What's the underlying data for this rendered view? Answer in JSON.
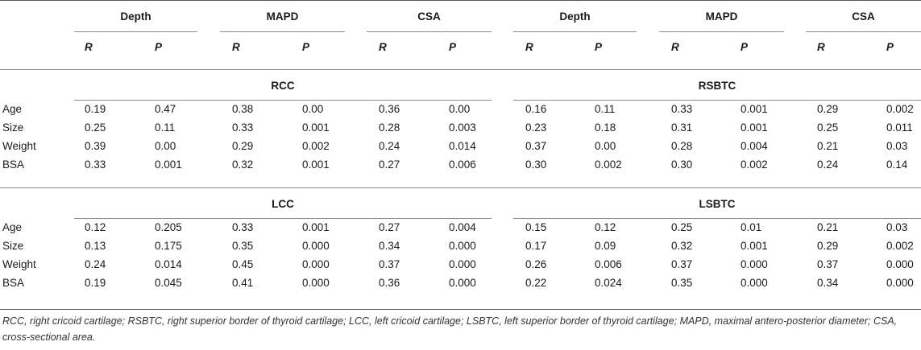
{
  "columns": {
    "left_groups": [
      "Depth",
      "MAPD",
      "CSA"
    ],
    "right_groups": [
      "Depth",
      "MAPD",
      "CSA"
    ],
    "sub_r": "R",
    "sub_p": "P"
  },
  "sections": [
    {
      "left_title": "RCC",
      "right_title": "RSBTC",
      "rows": [
        {
          "label": "Age",
          "values": [
            "0.19",
            "0.47",
            "0.38",
            "0.00",
            "0.36",
            "0.00",
            "0.16",
            "0.11",
            "0.33",
            "0.001",
            "0.29",
            "0.002"
          ]
        },
        {
          "label": "Size",
          "values": [
            "0.25",
            "0.11",
            "0.33",
            "0.001",
            "0.28",
            "0.003",
            "0.23",
            "0.18",
            "0.31",
            "0.001",
            "0.25",
            "0.011"
          ]
        },
        {
          "label": "Weight",
          "values": [
            "0.39",
            "0.00",
            "0.29",
            "0.002",
            "0.24",
            "0.014",
            "0.37",
            "0.00",
            "0.28",
            "0.004",
            "0.21",
            "0.03"
          ]
        },
        {
          "label": "BSA",
          "values": [
            "0.33",
            "0.001",
            "0.32",
            "0.001",
            "0.27",
            "0.006",
            "0.30",
            "0.002",
            "0.30",
            "0.002",
            "0.24",
            "0.14"
          ]
        }
      ]
    },
    {
      "left_title": "LCC",
      "right_title": "LSBTC",
      "rows": [
        {
          "label": "Age",
          "values": [
            "0.12",
            "0.205",
            "0.33",
            "0.001",
            "0.27",
            "0.004",
            "0.15",
            "0.12",
            "0.25",
            "0.01",
            "0.21",
            "0.03"
          ]
        },
        {
          "label": "Size",
          "values": [
            "0.13",
            "0.175",
            "0.35",
            "0.000",
            "0.34",
            "0.000",
            "0.17",
            "0.09",
            "0.32",
            "0.001",
            "0.29",
            "0.002"
          ]
        },
        {
          "label": "Weight",
          "values": [
            "0.24",
            "0.014",
            "0.45",
            "0.000",
            "0.37",
            "0.000",
            "0.26",
            "0.006",
            "0.37",
            "0.000",
            "0.37",
            "0.000"
          ]
        },
        {
          "label": "BSA",
          "values": [
            "0.19",
            "0.045",
            "0.41",
            "0.000",
            "0.36",
            "0.000",
            "0.22",
            "0.024",
            "0.35",
            "0.000",
            "0.34",
            "0.000"
          ]
        }
      ]
    }
  ],
  "footnote": "RCC, right cricoid cartilage; RSBTC, right superior border of thyroid cartilage; LCC, left cricoid cartilage; LSBTC, left superior border of thyroid cartilage; MAPD, maximal antero-posterior diameter; CSA, cross-sectional area."
}
